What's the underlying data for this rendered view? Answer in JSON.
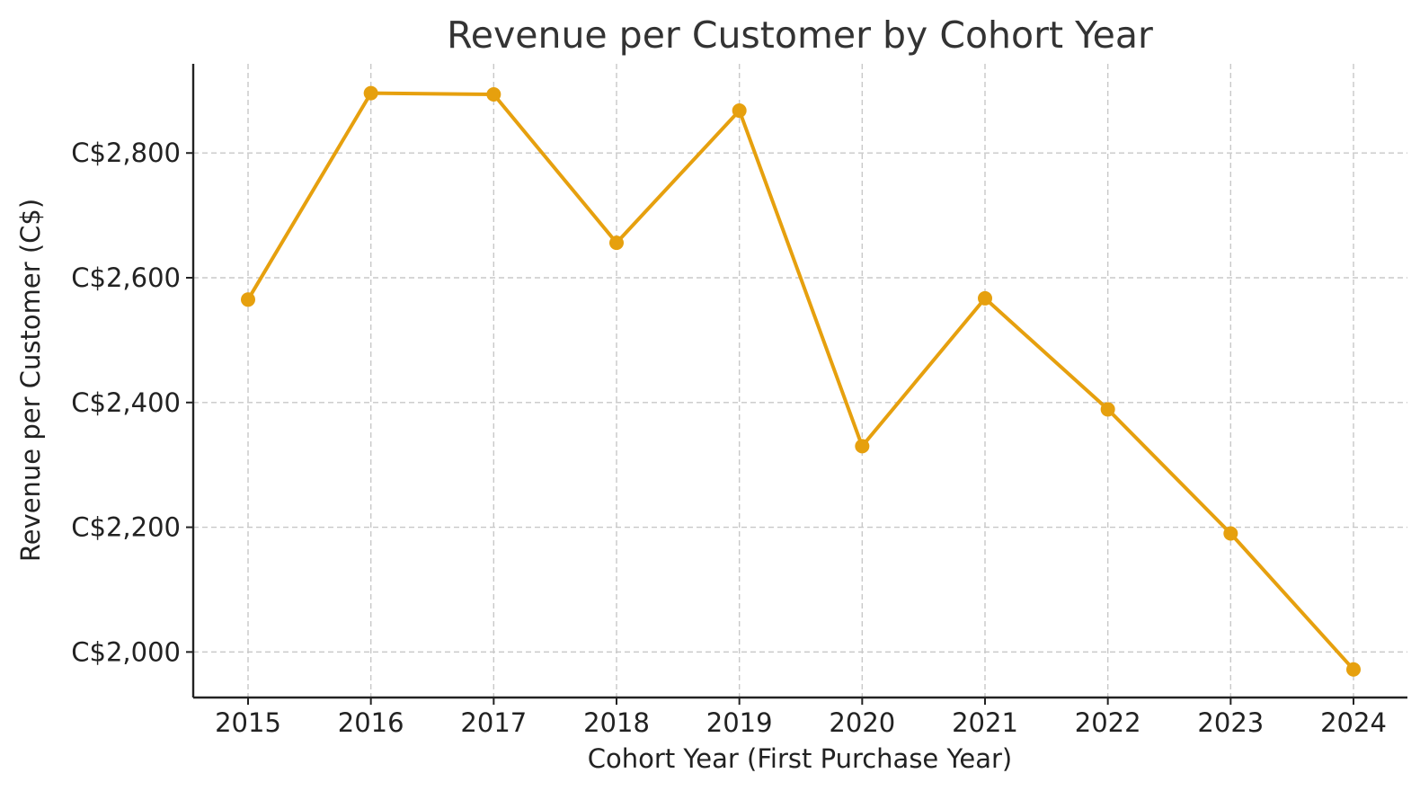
{
  "chart_data": {
    "type": "line",
    "title": "Revenue per Customer by Cohort Year",
    "xlabel": "Cohort Year (First Purchase Year)",
    "ylabel": "Revenue per Customer (C$)",
    "x": [
      "2015",
      "2016",
      "2017",
      "2018",
      "2019",
      "2020",
      "2021",
      "2022",
      "2023",
      "2024"
    ],
    "series": [
      {
        "values": [
          2565,
          2896,
          2894,
          2656,
          2868,
          2330,
          2567,
          2389,
          2190,
          1972
        ]
      }
    ],
    "ylim": [
      1927,
      2943
    ],
    "yticks": [
      2000,
      2200,
      2400,
      2600,
      2800
    ],
    "ytick_labels": [
      "C$2,000",
      "C$2,200",
      "C$2,400",
      "C$2,600",
      "C$2,800"
    ],
    "grid": true,
    "colors": {
      "line": "#E6A00E"
    }
  }
}
